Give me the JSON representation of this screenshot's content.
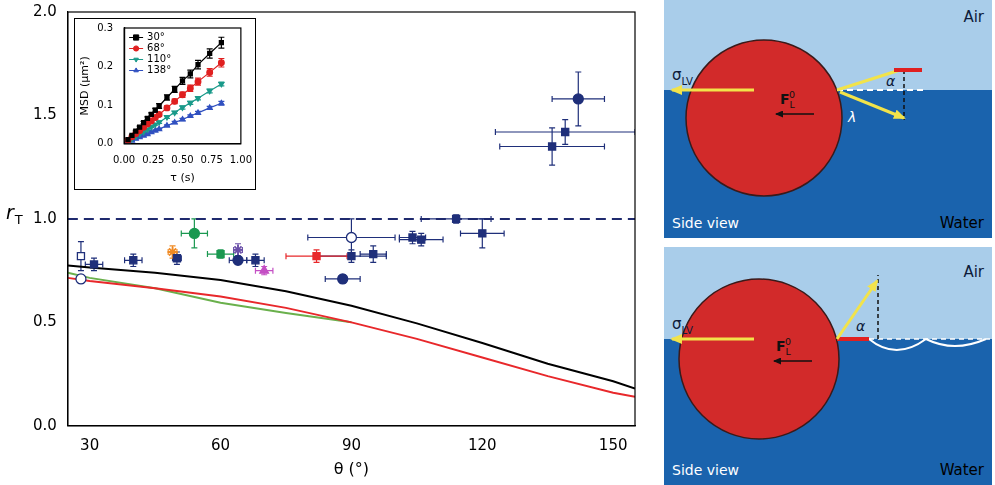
{
  "chart_data": [
    {
      "type": "scatter",
      "xlabel": "θ (°)",
      "ylabel": {
        "symbol": "r",
        "sub": "T"
      },
      "xlim": [
        25,
        155
      ],
      "ylim": [
        0,
        2.0
      ],
      "xticks": [
        30,
        60,
        90,
        120,
        150
      ],
      "yticks": [
        {
          "value": 0,
          "label": "0.0"
        },
        0.5,
        {
          "value": 1,
          "label": "1.0"
        },
        1.5,
        {
          "value": 2,
          "label": "2.0"
        }
      ],
      "grid": false,
      "series": [
        {
          "type": "line",
          "color": "#000000",
          "line_style": "solid",
          "x": [
            25,
            30,
            45,
            60,
            75,
            90,
            105,
            120,
            135,
            150,
            155
          ],
          "values": [
            0.775,
            0.765,
            0.74,
            0.705,
            0.65,
            0.58,
            0.495,
            0.4,
            0.3,
            0.215,
            0.18
          ]
        },
        {
          "type": "line",
          "color": "#e8282b",
          "line_style": "solid",
          "x": [
            25,
            30,
            45,
            60,
            75,
            90,
            105,
            120,
            135,
            150,
            155
          ],
          "values": [
            0.715,
            0.7,
            0.665,
            0.625,
            0.57,
            0.5,
            0.42,
            0.33,
            0.24,
            0.16,
            0.14
          ]
        },
        {
          "type": "line",
          "color": "#6ab04c",
          "line_style": "solid",
          "x": [
            25,
            30,
            45,
            60,
            75,
            90
          ],
          "values": [
            0.74,
            0.715,
            0.665,
            0.595,
            0.545,
            0.5
          ]
        },
        {
          "type": "line",
          "color": "#1f2a6e",
          "line_style": "dashed",
          "x": [
            25,
            155
          ],
          "values": [
            1,
            1
          ]
        },
        {
          "type": "scatter",
          "color": "#1f2f7a",
          "marker": "square",
          "x": [
            31,
            40,
            50,
            68,
            90,
            95,
            104,
            106,
            114,
            120,
            136,
            139
          ],
          "values": [
            0.78,
            0.8,
            0.81,
            0.8,
            0.82,
            0.83,
            0.91,
            0.9,
            1.0,
            0.93,
            1.35,
            1.42
          ],
          "x_error": [
            2,
            2,
            1,
            2,
            8,
            3,
            3,
            5,
            8,
            5,
            12,
            16
          ],
          "y_error": [
            0.03,
            0.03,
            0.03,
            0.03,
            0.03,
            0.04,
            0.03,
            0.03,
            0.02,
            0.07,
            0.09,
            0.06
          ]
        },
        {
          "type": "scatter",
          "color": "#1f2f7a",
          "marker": "square-open",
          "x": [
            28
          ],
          "values": [
            0.82
          ],
          "x_error": [
            0
          ],
          "y_error": [
            0.07
          ]
        },
        {
          "type": "scatter",
          "color": "#1f2f7a",
          "marker": "circle",
          "x": [
            64,
            88,
            142
          ],
          "values": [
            0.8,
            0.71,
            1.58
          ],
          "x_error": [
            2,
            4,
            6
          ],
          "y_error": [
            0.02,
            0.02,
            0.13
          ]
        },
        {
          "type": "scatter",
          "color": "#1f2f7a",
          "marker": "circle-open",
          "x": [
            28,
            90
          ],
          "values": [
            0.71,
            0.91
          ],
          "x_error": [
            0,
            10
          ],
          "y_error": [
            0.02,
            0.09
          ]
        },
        {
          "type": "scatter",
          "color": "#f08a24",
          "marker": "asterisk",
          "x": [
            49
          ],
          "values": [
            0.84
          ],
          "x_error": [
            1
          ],
          "y_error": [
            0.03
          ]
        },
        {
          "type": "scatter",
          "color": "#1a9850",
          "marker": "circle",
          "x": [
            54
          ],
          "values": [
            0.93
          ],
          "x_error": [
            3
          ],
          "y_error": [
            0.07
          ]
        },
        {
          "type": "scatter",
          "color": "#1a9850",
          "marker": "square",
          "x": [
            60
          ],
          "values": [
            0.83
          ],
          "x_error": [
            3
          ],
          "y_error": [
            0.02
          ]
        },
        {
          "type": "scatter",
          "color": "#6a4fa8",
          "marker": "asterisk",
          "x": [
            64
          ],
          "values": [
            0.85
          ],
          "x_error": [
            1
          ],
          "y_error": [
            0.03
          ]
        },
        {
          "type": "scatter",
          "color": "#c44fc4",
          "marker": "triangle",
          "x": [
            70
          ],
          "values": [
            0.75
          ],
          "x_error": [
            2
          ],
          "y_error": [
            0.02
          ]
        },
        {
          "type": "scatter",
          "color": "#e8282b",
          "marker": "square",
          "x": [
            82
          ],
          "values": [
            0.82
          ],
          "x_error": [
            7
          ],
          "y_error": [
            0.03
          ]
        }
      ]
    },
    {
      "type": "scatter",
      "xlabel": "τ (s)",
      "ylabel": "MSD (μm²)",
      "xlim": [
        0,
        1.0
      ],
      "ylim": [
        0,
        0.3
      ],
      "xticks": [
        {
          "value": 0,
          "label": "0.00"
        },
        0.25,
        {
          "value": 0.5,
          "label": "0.50"
        },
        0.75,
        {
          "value": 1,
          "label": "1.00"
        }
      ],
      "yticks": [
        {
          "value": 0,
          "label": "0.0"
        },
        0.1,
        0.2,
        0.3
      ],
      "grid": false,
      "legend": "top-left",
      "series": [
        {
          "name": "30°",
          "color": "#000000",
          "marker": "square",
          "line_style": "solid",
          "x": [
            0.033,
            0.067,
            0.1,
            0.133,
            0.167,
            0.2,
            0.233,
            0.267,
            0.3,
            0.367,
            0.433,
            0.5,
            0.567,
            0.633,
            0.733,
            0.833
          ],
          "values": [
            0.011,
            0.022,
            0.033,
            0.043,
            0.055,
            0.066,
            0.076,
            0.087,
            0.098,
            0.12,
            0.141,
            0.163,
            0.181,
            0.205,
            0.234,
            0.262
          ],
          "y_error": [
            0.001,
            0.002,
            0.002,
            0.003,
            0.003,
            0.004,
            0.004,
            0.005,
            0.006,
            0.007,
            0.008,
            0.009,
            0.01,
            0.011,
            0.012,
            0.014
          ]
        },
        {
          "name": "68°",
          "color": "#e02020",
          "marker": "circle",
          "line_style": "solid",
          "x": [
            0.033,
            0.067,
            0.1,
            0.133,
            0.167,
            0.2,
            0.233,
            0.267,
            0.3,
            0.367,
            0.433,
            0.5,
            0.567,
            0.633,
            0.733,
            0.833
          ],
          "values": [
            0.009,
            0.018,
            0.026,
            0.034,
            0.043,
            0.051,
            0.059,
            0.068,
            0.076,
            0.093,
            0.11,
            0.127,
            0.144,
            0.161,
            0.185,
            0.21
          ],
          "y_error": [
            0.001,
            0.001,
            0.002,
            0.002,
            0.003,
            0.003,
            0.004,
            0.004,
            0.005,
            0.005,
            0.006,
            0.007,
            0.008,
            0.009,
            0.01,
            0.011
          ]
        },
        {
          "name": "110°",
          "color": "#1a9a8a",
          "marker": "triangle-down",
          "line_style": "solid",
          "x": [
            0.033,
            0.067,
            0.1,
            0.133,
            0.167,
            0.2,
            0.233,
            0.267,
            0.3,
            0.367,
            0.433,
            0.5,
            0.567,
            0.633,
            0.733,
            0.833
          ],
          "values": [
            0.006,
            0.013,
            0.019,
            0.025,
            0.031,
            0.037,
            0.044,
            0.05,
            0.056,
            0.069,
            0.081,
            0.094,
            0.106,
            0.118,
            0.137,
            0.155
          ],
          "y_error": [
            0.001,
            0.001,
            0.001,
            0.001,
            0.002,
            0.002,
            0.002,
            0.002,
            0.003,
            0.003,
            0.003,
            0.004,
            0.004,
            0.004,
            0.005,
            0.005
          ]
        },
        {
          "name": "138°",
          "color": "#3050c0",
          "marker": "triangle",
          "line_style": "solid",
          "x": [
            0.033,
            0.067,
            0.1,
            0.133,
            0.167,
            0.2,
            0.233,
            0.267,
            0.3,
            0.367,
            0.433,
            0.5,
            0.567,
            0.633,
            0.733,
            0.833
          ],
          "values": [
            0.004,
            0.008,
            0.013,
            0.017,
            0.021,
            0.025,
            0.03,
            0.034,
            0.038,
            0.047,
            0.055,
            0.063,
            0.072,
            0.08,
            0.093,
            0.105
          ],
          "y_error": [
            0.001,
            0.001,
            0.001,
            0.001,
            0.001,
            0.002,
            0.002,
            0.002,
            0.002,
            0.002,
            0.003,
            0.003,
            0.003,
            0.004,
            0.004,
            0.005
          ]
        }
      ]
    }
  ],
  "diagrams": [
    {
      "air": "Air",
      "water": "Water",
      "view": "Side view",
      "tension": {
        "symbol": "σ",
        "sub": "LV"
      },
      "force": {
        "symbol": "F",
        "sub": "L",
        "sup": "0"
      },
      "angles": [
        "α",
        "λ"
      ]
    },
    {
      "air": "Air",
      "water": "Water",
      "view": "Side view",
      "tension": {
        "symbol": "σ",
        "sub": "LV"
      },
      "force": {
        "symbol": "F",
        "sub": "L",
        "sup": "0"
      },
      "angles": [
        "α"
      ]
    }
  ]
}
